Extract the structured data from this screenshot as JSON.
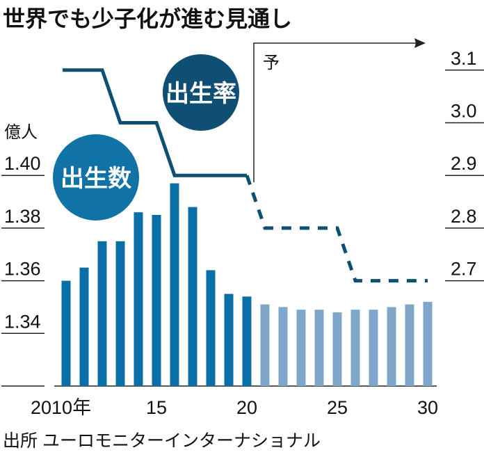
{
  "chart_data": {
    "type": "bar",
    "title": "世界でも少子化が進む見通し",
    "left_unit": "億人",
    "forecast_label": "予",
    "source": "出所 ユーロモニターインターナショナル",
    "x": [
      2010,
      2011,
      2012,
      2013,
      2014,
      2015,
      2016,
      2017,
      2018,
      2019,
      2020,
      2021,
      2022,
      2023,
      2024,
      2025,
      2026,
      2027,
      2028,
      2029,
      2030
    ],
    "x_tick_labels": [
      {
        "x": 2010,
        "label": "2010年"
      },
      {
        "x": 2015,
        "label": "15"
      },
      {
        "x": 2020,
        "label": "20"
      },
      {
        "x": 2025,
        "label": "25"
      },
      {
        "x": 2030,
        "label": "30"
      }
    ],
    "left_axis": {
      "ylim": [
        1.32,
        1.4
      ],
      "ticks": [
        "1.40",
        "1.38",
        "1.36",
        "1.34"
      ]
    },
    "right_axis": {
      "ylim": [
        2.6,
        3.1
      ],
      "ticks": [
        "3.1",
        "3.0",
        "2.9",
        "2.8",
        "2.7"
      ]
    },
    "forecast_start": 2021,
    "series": [
      {
        "name": "出生数",
        "type": "bar",
        "axis": "left",
        "values": [
          1.36,
          1.365,
          1.375,
          1.375,
          1.386,
          1.385,
          1.397,
          1.388,
          1.364,
          1.355,
          1.354,
          1.351,
          1.35,
          1.349,
          1.349,
          1.348,
          1.349,
          1.349,
          1.35,
          1.351,
          1.352
        ],
        "color": "#0a6fa6",
        "forecast_color": "#7fa7ca"
      },
      {
        "name": "出生率",
        "type": "line",
        "axis": "right",
        "values": [
          3.1,
          3.1,
          3.1,
          3.0,
          3.0,
          3.0,
          2.9,
          2.9,
          2.9,
          2.9,
          2.9,
          2.8,
          2.8,
          2.8,
          2.8,
          2.8,
          2.7,
          2.7,
          2.7,
          2.7,
          2.7
        ],
        "color": "#0e4f74"
      }
    ],
    "badges": {
      "births_color": "#1172a6",
      "rate_color": "#0f4f74"
    },
    "grid": false,
    "legend": "inline-badges"
  }
}
